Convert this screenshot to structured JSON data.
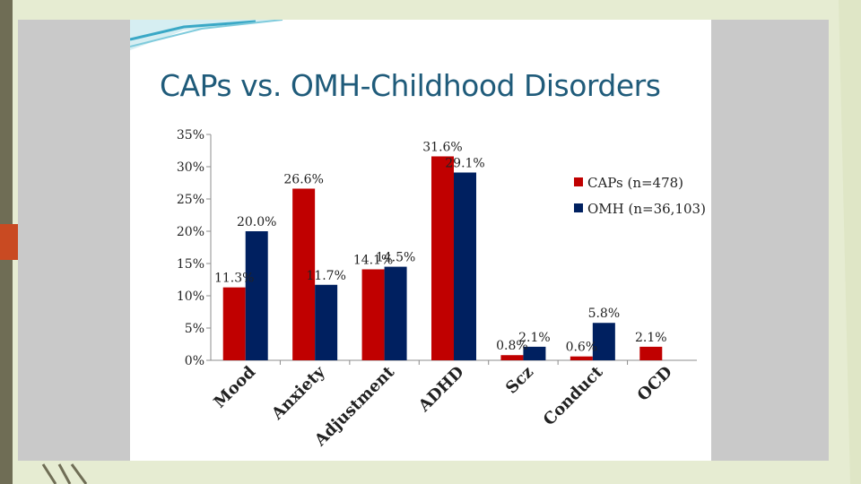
{
  "slide": {
    "title": "CAPs vs. OMH-Childhood Disorders"
  },
  "chart_data": {
    "type": "bar",
    "title": "CAPs vs. OMH-Childhood Disorders",
    "xlabel": "",
    "ylabel": "",
    "categories": [
      "Mood",
      "Anxiety",
      "Adjustment",
      "ADHD",
      "Scz",
      "Conduct",
      "OCD"
    ],
    "series": [
      {
        "name": "CAPs (n=478)",
        "color": "#c00000",
        "values": [
          11.3,
          26.6,
          14.1,
          31.6,
          0.8,
          0.6,
          2.1
        ],
        "labels": [
          "11.3%",
          "26.6%",
          "14.1%",
          "31.6%",
          "0.8%",
          "0.6%",
          "2.1%"
        ]
      },
      {
        "name": "OMH (n=36,103)",
        "color": "#002060",
        "values": [
          20.0,
          11.7,
          14.5,
          29.1,
          2.1,
          5.8,
          null
        ],
        "labels": [
          "20.0%",
          "11.7%",
          "14.5%",
          "29.1%",
          "2.1%",
          "5.8%",
          null
        ]
      }
    ],
    "ylim": [
      0,
      35
    ],
    "yticks": [
      0,
      5,
      10,
      15,
      20,
      25,
      30,
      35
    ],
    "ytick_labels": [
      "0%",
      "5%",
      "10%",
      "15%",
      "20%",
      "25%",
      "30%",
      "35%"
    ],
    "grid": false,
    "legend_position": "right"
  }
}
